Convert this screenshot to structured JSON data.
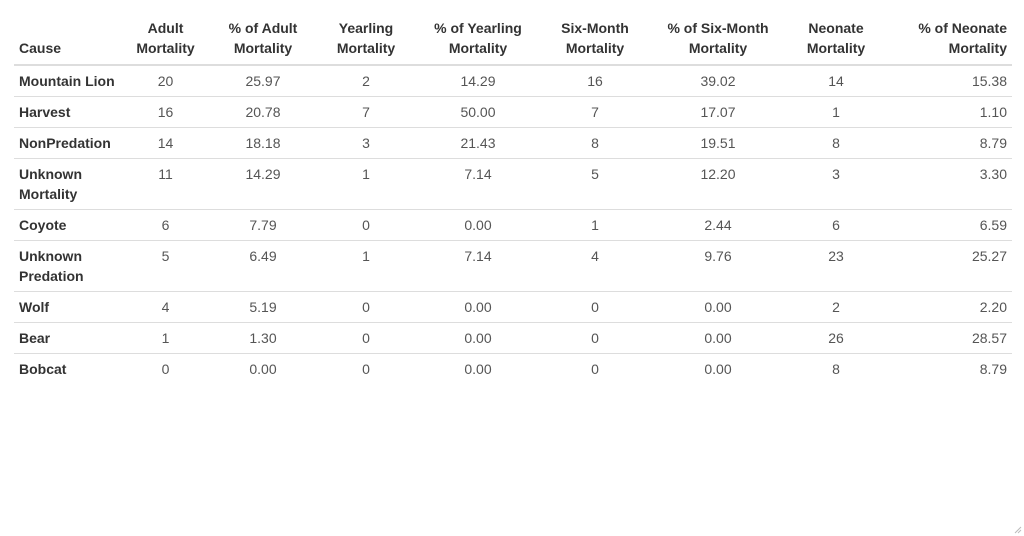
{
  "chart_data": {
    "type": "table",
    "columns": [
      "Cause",
      "Adult Mortality",
      "% of Adult Mortality",
      "Yearling Mortality",
      "% of Yearling Mortality",
      "Six-Month Mortality",
      "% of Six-Month Mortality",
      "Neonate Mortality",
      "% of Neonate Mortality"
    ],
    "header_lines": [
      [
        "",
        "Cause"
      ],
      [
        "Adult",
        "Mortality"
      ],
      [
        "% of Adult",
        "Mortality"
      ],
      [
        "Yearling",
        "Mortality"
      ],
      [
        "% of Yearling",
        "Mortality"
      ],
      [
        "Six-Month",
        "Mortality"
      ],
      [
        "% of Six-Month",
        "Mortality"
      ],
      [
        "Neonate",
        "Mortality"
      ],
      [
        "% of Neonate",
        "Mortality"
      ]
    ],
    "rows": [
      [
        "Mountain Lion",
        "20",
        "25.97",
        "2",
        "14.29",
        "16",
        "39.02",
        "14",
        "15.38"
      ],
      [
        "Harvest",
        "16",
        "20.78",
        "7",
        "50.00",
        "7",
        "17.07",
        "1",
        "1.10"
      ],
      [
        "NonPredation",
        "14",
        "18.18",
        "3",
        "21.43",
        "8",
        "19.51",
        "8",
        "8.79"
      ],
      [
        "Unknown Mortality",
        "11",
        "14.29",
        "1",
        "7.14",
        "5",
        "12.20",
        "3",
        "3.30"
      ],
      [
        "Coyote",
        "6",
        "7.79",
        "0",
        "0.00",
        "1",
        "2.44",
        "6",
        "6.59"
      ],
      [
        "Unknown Predation",
        "5",
        "6.49",
        "1",
        "7.14",
        "4",
        "9.76",
        "23",
        "25.27"
      ],
      [
        "Wolf",
        "4",
        "5.19",
        "0",
        "0.00",
        "0",
        "0.00",
        "2",
        "2.20"
      ],
      [
        "Bear",
        "1",
        "1.30",
        "0",
        "0.00",
        "0",
        "0.00",
        "26",
        "28.57"
      ],
      [
        "Bobcat",
        "0",
        "0.00",
        "0",
        "0.00",
        "0",
        "0.00",
        "8",
        "8.79"
      ]
    ]
  },
  "colors": {
    "text": "#333333",
    "number_text": "#555555",
    "rule": "#dddddd",
    "background": "#ffffff"
  }
}
